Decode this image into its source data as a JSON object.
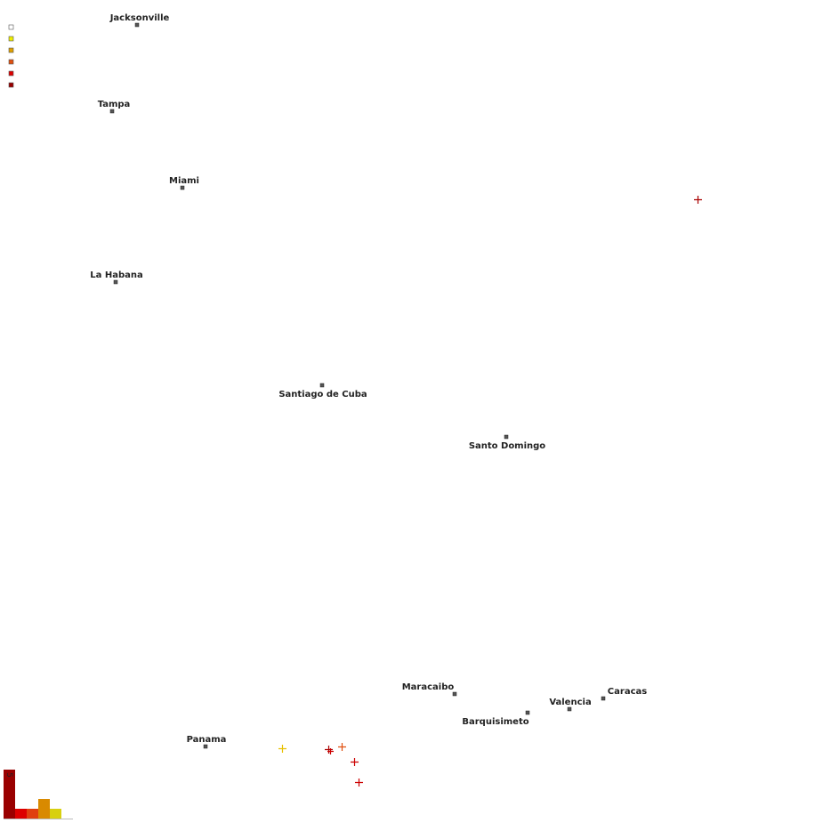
{
  "map": {
    "cities": [
      "Jacksonville",
      "Tampa",
      "Miami",
      "La Habana",
      "Santiago de Cuba",
      "Santo Domingo",
      "Maracaibo",
      "Caracas",
      "Valencia",
      "Barquisimeto",
      "Panama"
    ]
  },
  "histogram": {
    "values": [
      5,
      1,
      1,
      2,
      1
    ],
    "colors": [
      "#990000",
      "#dd0000",
      "#e04010",
      "#d98a00",
      "#d8d010"
    ]
  }
}
